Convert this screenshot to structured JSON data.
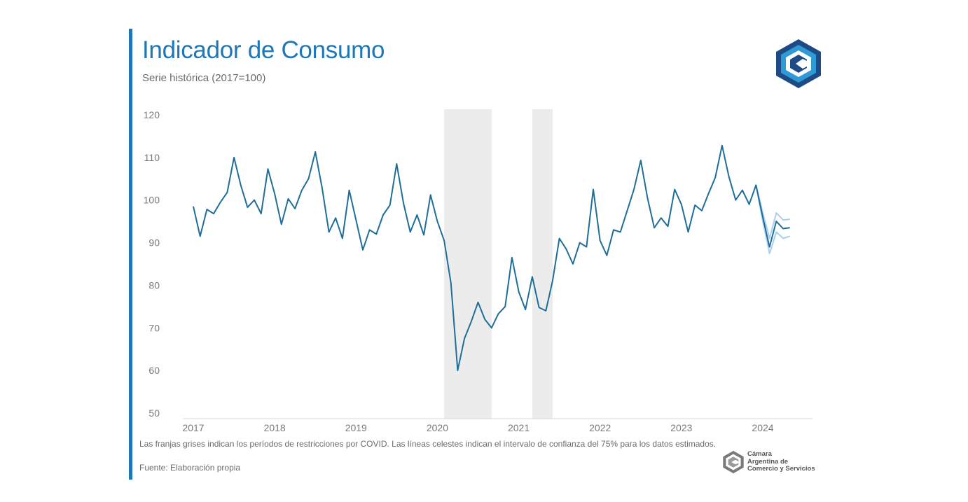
{
  "header": {
    "title": "Indicador de Consumo",
    "subtitle": "Serie histórica (2017=100)"
  },
  "footer": {
    "note": "Las franjas grises indican los períodos de restricciones por COVID. Las líneas celestes indican el intervalo de confianza del 75% para los datos estimados.",
    "source": "Fuente: Elaboración propia",
    "brand_lines": [
      "Cámara",
      "Argentina de",
      "Comercio y Servicios"
    ]
  },
  "logo": {
    "name": "CAC logo"
  },
  "colors": {
    "accent": "#1f77b8",
    "line": "#1f6e99",
    "ci": "#a9cfee",
    "shade": "#ececec",
    "logo_dark": "#1e4a86",
    "logo_light": "#2e9bd6"
  },
  "chart_data": {
    "type": "line",
    "title": "Indicador de Consumo",
    "subtitle": "Serie histórica (2017=100)",
    "ylim": [
      50,
      120
    ],
    "yticks": [
      50,
      60,
      70,
      80,
      90,
      100,
      110,
      120
    ],
    "xticks": [
      "2017",
      "2018",
      "2019",
      "2020",
      "2021",
      "2022",
      "2023",
      "2024"
    ],
    "xlim": [
      2017,
      2024.67
    ],
    "grid": false,
    "x_start": 2017.0,
    "x_step": 0.08333,
    "series": [
      {
        "name": "Indicador de Consumo",
        "values": [
          98.5,
          91.5,
          97.8,
          96.8,
          99.5,
          101.8,
          110.0,
          103.5,
          98.3,
          100.0,
          96.8,
          107.3,
          101.5,
          94.3,
          100.3,
          98.0,
          102.3,
          105.0,
          111.3,
          102.8,
          92.5,
          95.8,
          91.0,
          102.3,
          95.3,
          88.3,
          93.0,
          92.0,
          96.5,
          98.8,
          108.5,
          99.3,
          92.5,
          96.5,
          91.8,
          101.2,
          95.0,
          90.5,
          80.5,
          60.0,
          67.5,
          71.5,
          76.0,
          72.0,
          70.0,
          73.3,
          75.0,
          86.5,
          78.5,
          74.3,
          82.0,
          74.8,
          74.0,
          81.0,
          91.0,
          88.5,
          85.0,
          90.0,
          89.0,
          102.5,
          90.5,
          87.0,
          93.0,
          92.5,
          97.5,
          102.5,
          109.3,
          100.5,
          93.5,
          95.8,
          93.8,
          102.5,
          99.0,
          92.5,
          98.8,
          97.5,
          101.5,
          105.3,
          112.8,
          105.5,
          100.0,
          102.3,
          99.0,
          103.5,
          96.0,
          89.0,
          95.0,
          93.3,
          93.5
        ]
      },
      {
        "name": "Intervalo de confianza 75% (superior)",
        "x_start": 2023.917,
        "values": [
          103.5,
          97.0,
          91.0,
          97.0,
          95.3,
          95.5
        ]
      },
      {
        "name": "Intervalo de confianza 75% (inferior)",
        "x_start": 2023.917,
        "values": [
          103.5,
          95.0,
          87.5,
          92.5,
          91.0,
          91.5
        ]
      }
    ],
    "shaded_periods": [
      {
        "label": "Restricciones COVID 2020",
        "x_start": 2020.083,
        "x_end": 2020.667
      },
      {
        "label": "Restricciones COVID 2021",
        "x_start": 2021.167,
        "x_end": 2021.417
      }
    ]
  }
}
